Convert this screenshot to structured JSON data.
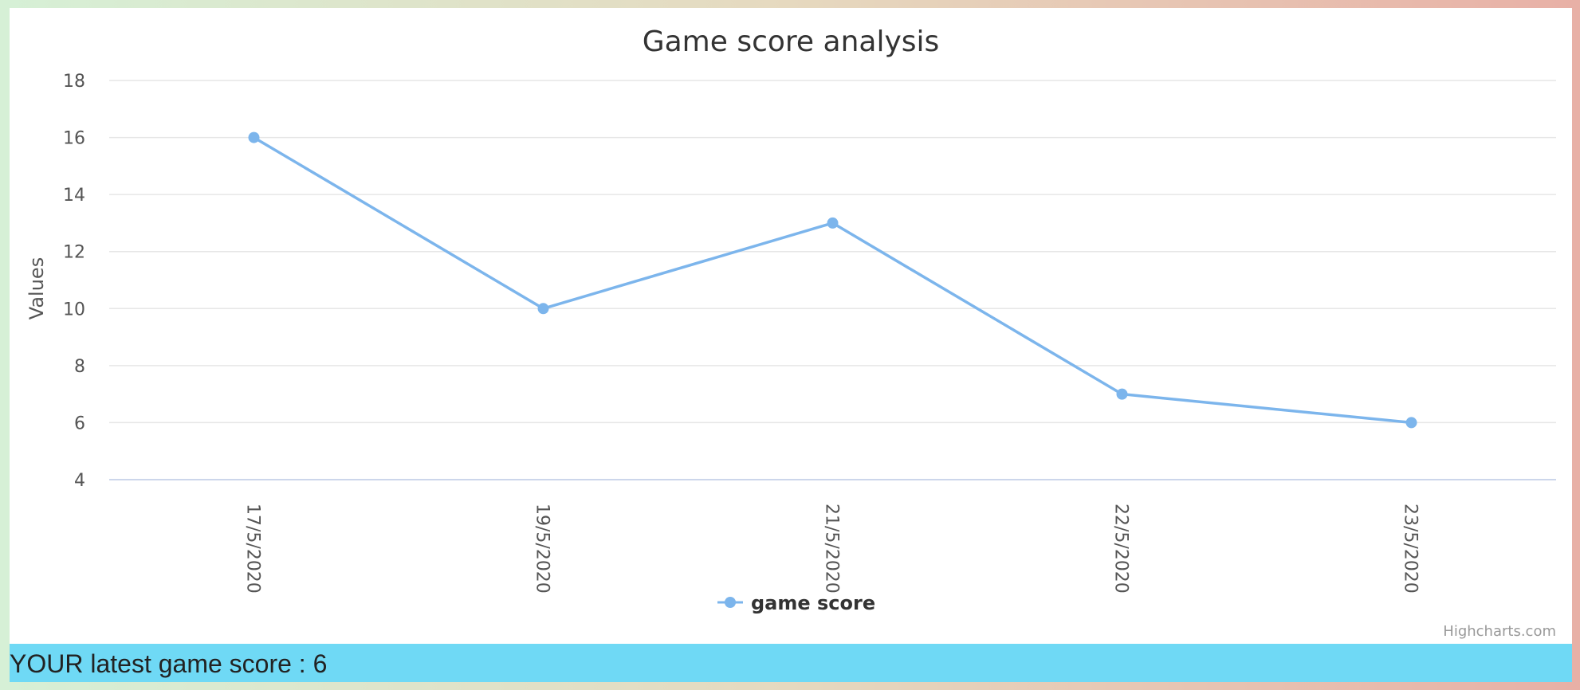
{
  "chart_data": {
    "type": "line",
    "title": "Game score analysis",
    "ylabel": "Values",
    "xlabel": "",
    "categories": [
      "17/5/2020",
      "19/5/2020",
      "21/5/2020",
      "22/5/2020",
      "23/5/2020"
    ],
    "series": [
      {
        "name": "game score",
        "values": [
          16,
          10,
          13,
          7,
          6
        ],
        "color": "#7cb5ec"
      }
    ],
    "ylim": [
      4,
      18
    ],
    "yticks": [
      "4",
      "6",
      "8",
      "10",
      "12",
      "14",
      "16",
      "18"
    ],
    "grid": true,
    "legend_position": "bottom-center",
    "credit": "Highcharts.com"
  },
  "footer": {
    "latest_score_text": "YOUR latest game score : 6"
  },
  "colors": {
    "series": "#7cb5ec",
    "gridline": "#e6e6e6",
    "axis_line": "#ccd6eb",
    "score_bar": "#6fd9f5"
  }
}
